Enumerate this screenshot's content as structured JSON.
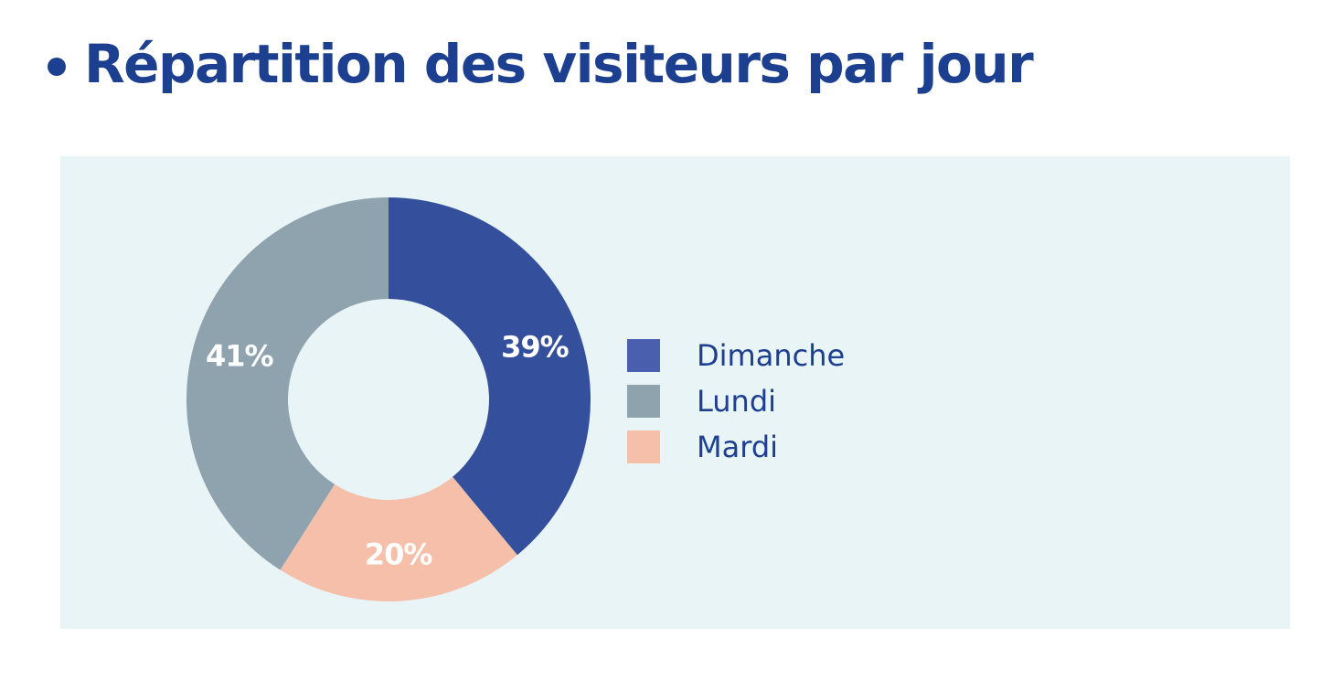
{
  "heading": {
    "title": "Répartition des visiteurs par jour"
  },
  "colors": {
    "title": "#1c3f8f",
    "panel_bg": "#e8f4f6",
    "label_text": "#ffffff"
  },
  "chart_data": {
    "type": "pie",
    "donut": true,
    "title": "Répartition des visiteurs par jour",
    "categories": [
      "Dimanche",
      "Mardi",
      "Lundi"
    ],
    "values": [
      39,
      20,
      41
    ],
    "labels": [
      "39%",
      "20%",
      "41%"
    ],
    "colors": [
      "#34509c",
      "#f6bfaa",
      "#8ea3ad"
    ],
    "legend_position": "right",
    "legend": [
      {
        "label": "Dimanche",
        "color": "#4a5fae"
      },
      {
        "label": "Lundi",
        "color": "#8ea3ad"
      },
      {
        "label": "Mardi",
        "color": "#f6bfaa"
      }
    ]
  }
}
